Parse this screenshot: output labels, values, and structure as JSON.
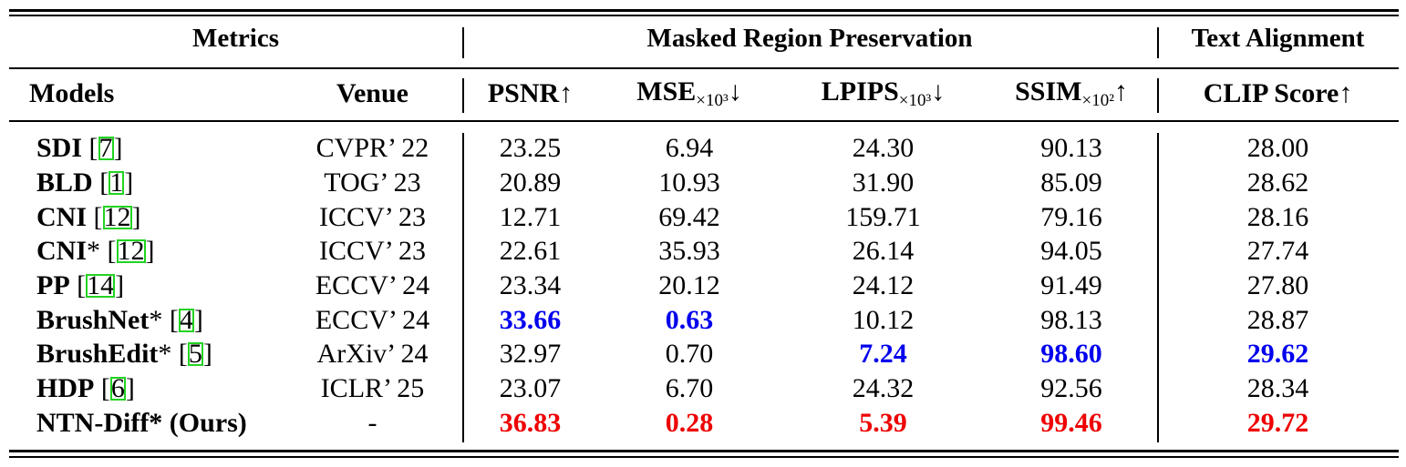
{
  "header": {
    "metrics": "Metrics",
    "group_preservation": "Masked Region Preservation",
    "group_text": "Text Alignment",
    "models": "Models",
    "venue": "Venue",
    "psnr": "PSNR↑",
    "mse_main": "MSE",
    "mse_sub": "×10³",
    "mse_arrow": "↓",
    "lpips_main": "LPIPS",
    "lpips_sub": "×10³",
    "lpips_arrow": "↓",
    "ssim_main": "SSIM",
    "ssim_sub": "×10²",
    "ssim_arrow": "↑",
    "clip": "CLIP Score↑"
  },
  "rows": [
    {
      "name": "SDI",
      "suffix": " [",
      "ref": "7",
      "close": "]",
      "venue": "CVPR’ 22",
      "psnr": "23.25",
      "mse": "6.94",
      "lpips": "24.30",
      "ssim": "90.13",
      "clip": "28.00"
    },
    {
      "name": "BLD",
      "suffix": " [",
      "ref": "1",
      "close": "]",
      "venue": "TOG’ 23",
      "psnr": "20.89",
      "mse": "10.93",
      "lpips": "31.90",
      "ssim": "85.09",
      "clip": "28.62"
    },
    {
      "name": "CNI",
      "suffix": " [",
      "ref": "12",
      "close": "]",
      "venue": "ICCV’ 23",
      "psnr": "12.71",
      "mse": "69.42",
      "lpips": "159.71",
      "ssim": "79.16",
      "clip": "28.16"
    },
    {
      "name": "CNI",
      "suffix": "* [",
      "ref": "12",
      "close": "]",
      "venue": "ICCV’ 23",
      "psnr": "22.61",
      "mse": "35.93",
      "lpips": "26.14",
      "ssim": "94.05",
      "clip": "27.74"
    },
    {
      "name": "PP",
      "suffix": " [",
      "ref": "14",
      "close": "]",
      "venue": "ECCV’ 24",
      "psnr": "23.34",
      "mse": "20.12",
      "lpips": "24.12",
      "ssim": "91.49",
      "clip": "27.80"
    },
    {
      "name": "BrushNet",
      "suffix": "* [",
      "ref": "4",
      "close": "]",
      "venue": "ECCV’ 24",
      "psnr": "33.66",
      "mse": "0.63",
      "lpips": "10.12",
      "ssim": "98.13",
      "clip": "28.87"
    },
    {
      "name": "BrushEdit",
      "suffix": "* [",
      "ref": "5",
      "close": "]",
      "venue": "ArXiv’ 24",
      "psnr": "32.97",
      "mse": "0.70",
      "lpips": "7.24",
      "ssim": "98.60",
      "clip": "29.62"
    },
    {
      "name": "HDP",
      "suffix": " [",
      "ref": "6",
      "close": "]",
      "venue": "ICLR’ 25",
      "psnr": "23.07",
      "mse": "6.70",
      "lpips": "24.32",
      "ssim": "92.56",
      "clip": "28.34"
    },
    {
      "name": "NTN-Diff* (Ours)",
      "suffix": "",
      "ref": "",
      "close": "",
      "venue": "-",
      "psnr": "36.83",
      "mse": "0.28",
      "lpips": "5.39",
      "ssim": "99.46",
      "clip": "29.72"
    }
  ],
  "colors": {
    "best": "#ee0000",
    "second": "#0000ee",
    "citation_box": "#22d322"
  }
}
